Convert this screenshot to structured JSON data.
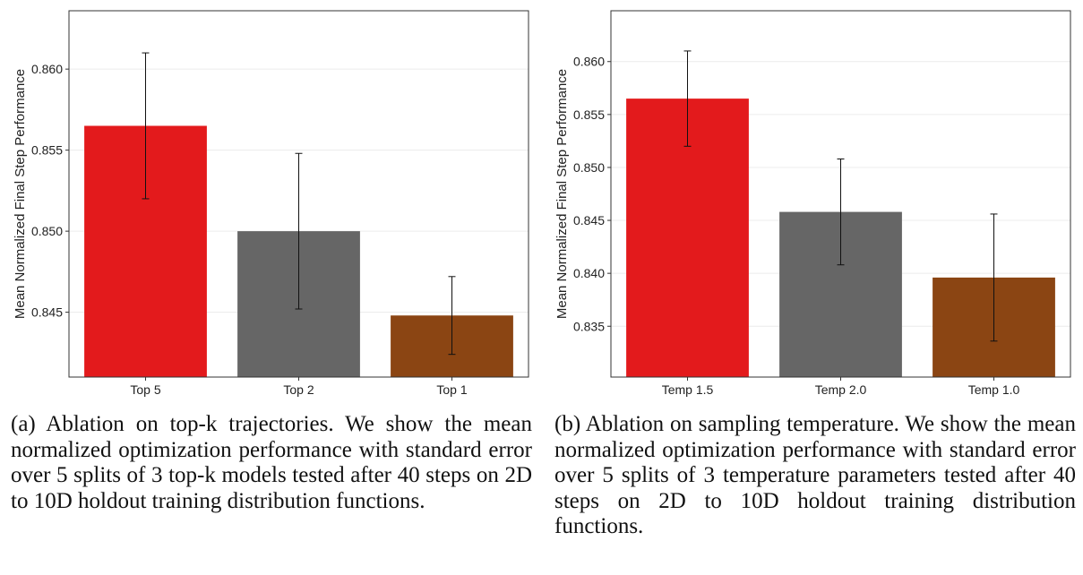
{
  "chart_data": [
    {
      "type": "bar",
      "categories": [
        "Top 5",
        "Top 2",
        "Top 1"
      ],
      "values": [
        0.8565,
        0.85,
        0.8448
      ],
      "error": [
        0.0045,
        0.0048,
        0.0024
      ],
      "colors": [
        "#e31a1c",
        "#666666",
        "#8b4513"
      ],
      "ylabel": "Mean Normalized Final Step Performance",
      "xlabel": "",
      "ylim": [
        0.841,
        0.8636
      ],
      "yticks": [
        0.845,
        0.85,
        0.855,
        0.86
      ],
      "ytick_labels": [
        "0.845",
        "0.850",
        "0.855",
        "0.860"
      ],
      "grid": true
    },
    {
      "type": "bar",
      "categories": [
        "Temp 1.5",
        "Temp 2.0",
        "Temp 1.0"
      ],
      "values": [
        0.8565,
        0.8458,
        0.8396
      ],
      "error": [
        0.0045,
        0.005,
        0.006
      ],
      "colors": [
        "#e31a1c",
        "#666666",
        "#8b4513"
      ],
      "ylabel": "Mean Normalized Final Step Performance",
      "xlabel": "",
      "ylim": [
        0.8302,
        0.8648
      ],
      "yticks": [
        0.835,
        0.84,
        0.845,
        0.85,
        0.855,
        0.86
      ],
      "ytick_labels": [
        "0.835",
        "0.840",
        "0.845",
        "0.850",
        "0.855",
        "0.860"
      ],
      "grid": true
    }
  ],
  "captions": {
    "a": "(a) Ablation on top-k trajectories. We show the mean normalized optimization performance with standard error over 5 splits of 3 top-k models tested after 40 steps on 2D to 10D holdout training distribution functions.",
    "b": "(b) Ablation on sampling temperature. We show the mean normalized optimization performance with standard error over 5 splits of 3 temperature parameters tested after 40 steps on 2D to 10D holdout training distribution functions."
  }
}
